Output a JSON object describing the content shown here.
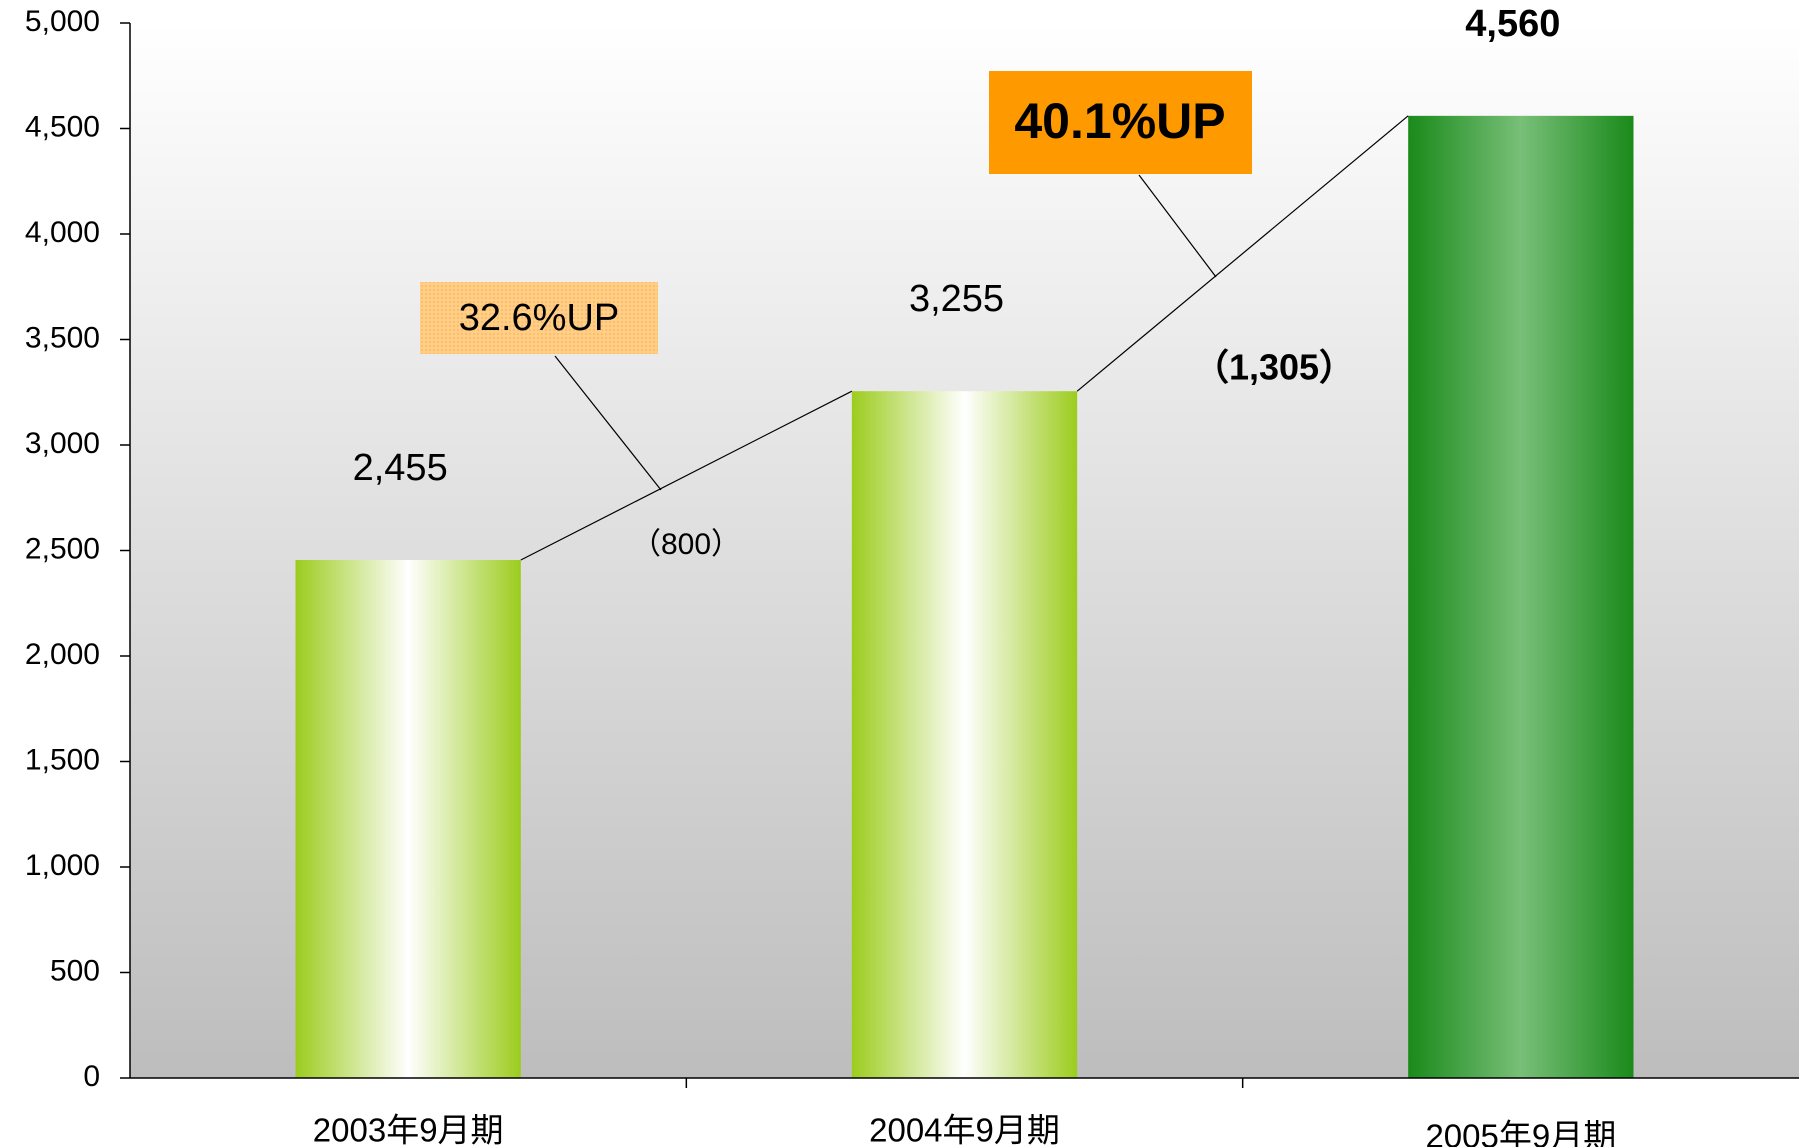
{
  "chart_data": {
    "type": "bar",
    "categories": [
      "2003年9月期",
      "2004年9月期",
      "2005年9月期"
    ],
    "values": [
      2455,
      3255,
      4560
    ],
    "value_labels": [
      "2,455",
      "3,255",
      "4,560"
    ],
    "colors": [
      [
        "#9ccc1e",
        "#ffffff"
      ],
      [
        "#9ccc1e",
        "#ffffff"
      ],
      [
        "#1a8a1a",
        "#78bf78"
      ]
    ],
    "annotations": [
      "32.6%UP",
      "（800）",
      "40.1%UP",
      "（1,305）"
    ],
    "ylim": [
      0,
      5000
    ],
    "yticks": [
      0,
      {
        "value": 500,
        "label": "500"
      },
      {
        "value": 1000,
        "label": "1,000"
      },
      {
        "value": 1500,
        "label": "1,500"
      },
      {
        "value": 2000,
        "label": "2,000"
      },
      {
        "value": 2500,
        "label": "2,500"
      },
      {
        "value": 3000,
        "label": "3,000"
      },
      {
        "value": 3500,
        "label": "3,500"
      },
      {
        "value": 4000,
        "label": "4,000"
      },
      {
        "value": 4500,
        "label": "4,500"
      },
      {
        "value": 5000,
        "label": "5,000"
      }
    ]
  }
}
